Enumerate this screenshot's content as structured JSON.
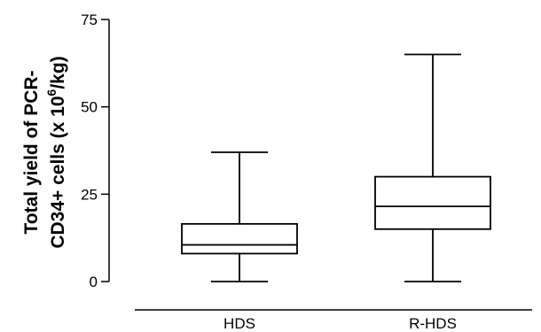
{
  "chart_data": {
    "type": "box",
    "title": "",
    "xlabel": "",
    "ylabel": {
      "line1": "Total yield of PCR-",
      "line2_prefix": "CD34+ cells (x 10",
      "line2_sup": "6",
      "line2_suffix": "/kg)"
    },
    "ylim": [
      0,
      75
    ],
    "yticks": [
      "0",
      "25",
      "50",
      "75"
    ],
    "categories": [
      "HDS",
      "R-HDS"
    ],
    "boxes": [
      {
        "category": "HDS",
        "min": 0,
        "q1": 8,
        "median": 10.5,
        "q3": 16.5,
        "max": 37
      },
      {
        "category": "R-HDS",
        "min": 0,
        "q1": 15,
        "median": 21.5,
        "q3": 30,
        "max": 65
      }
    ],
    "grid": false,
    "legend": "none"
  }
}
